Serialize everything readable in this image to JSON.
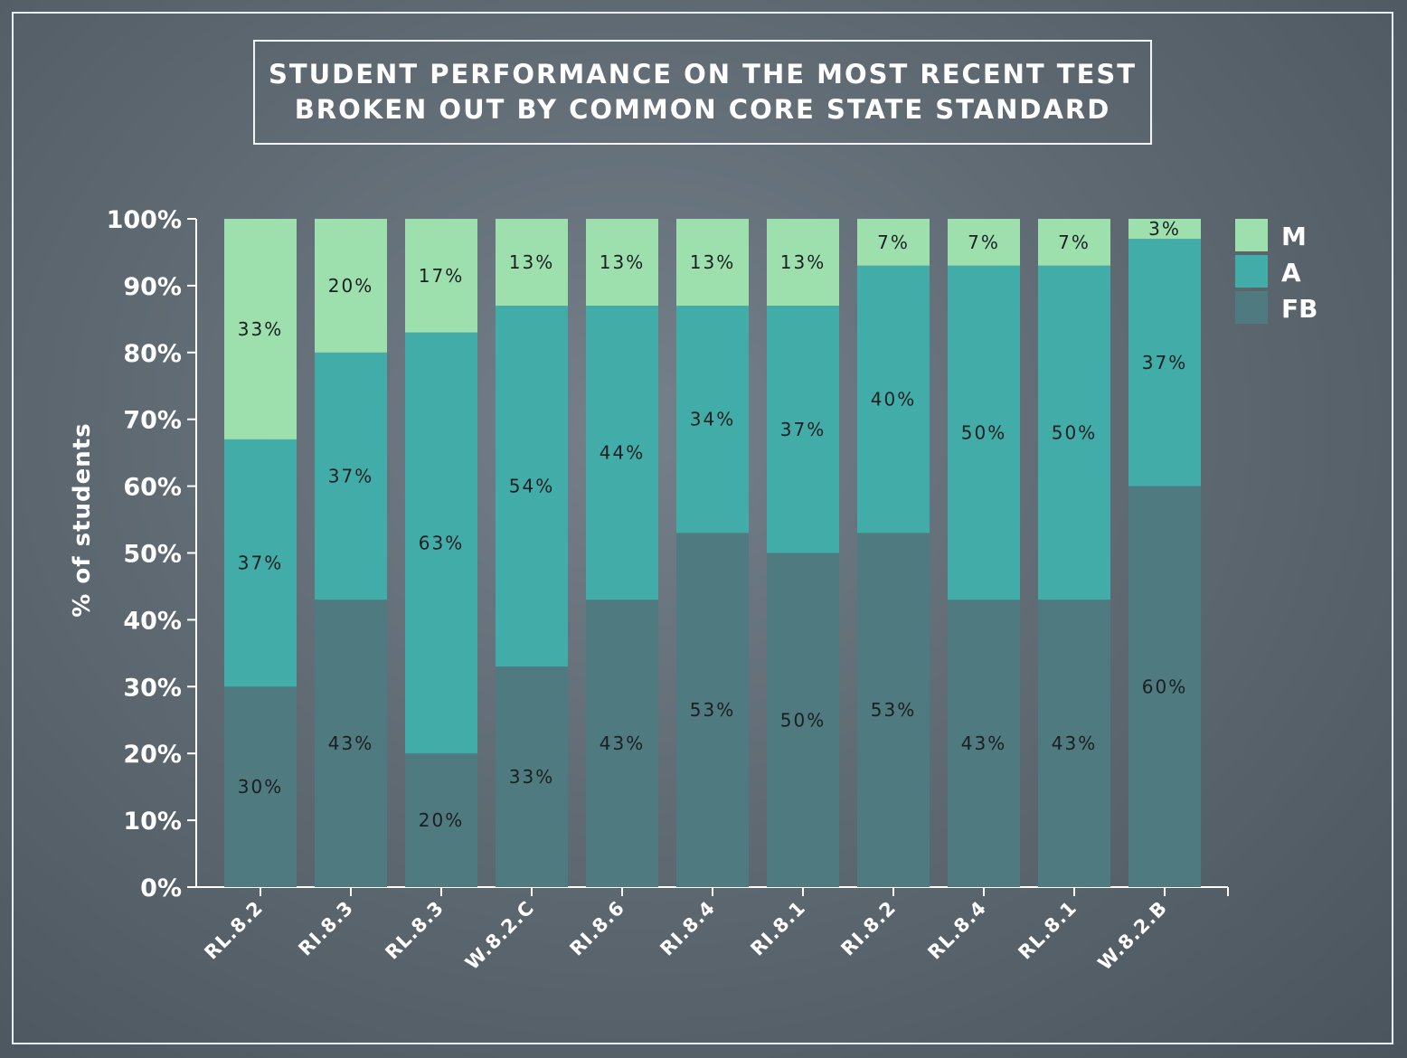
{
  "chart_data": {
    "type": "bar",
    "stacked": true,
    "title_lines": [
      "STUDENT PERFORMANCE ON THE MOST RECENT TEST",
      "BROKEN OUT BY COMMON CORE STATE STANDARD"
    ],
    "ylabel": "% of students",
    "ylim": [
      0,
      100
    ],
    "yticks": [
      "0%",
      "10%",
      "20%",
      "30%",
      "40%",
      "50%",
      "60%",
      "70%",
      "80%",
      "90%",
      "100%"
    ],
    "categories": [
      "RL.8.2",
      "RI.8.3",
      "RL.8.3",
      "W.8.2.C",
      "RI.8.6",
      "RI.8.4",
      "RI.8.1",
      "RI.8.2",
      "RL.8.4",
      "RL.8.1",
      "W.8.2.B"
    ],
    "series": [
      {
        "name": "FB",
        "color": "#4f7a80",
        "values": [
          30,
          43,
          20,
          33,
          43,
          53,
          50,
          53,
          43,
          43,
          60
        ],
        "labels": [
          "30%",
          "43%",
          "20%",
          "33%",
          "43%",
          "53%",
          "50%",
          "53%",
          "43%",
          "43%",
          "60%"
        ]
      },
      {
        "name": "A",
        "color": "#42aca8",
        "values": [
          37,
          37,
          63,
          54,
          44,
          34,
          37,
          40,
          50,
          50,
          37
        ],
        "labels": [
          "37%",
          "37%",
          "63%",
          "54%",
          "44%",
          "34%",
          "37%",
          "40%",
          "50%",
          "50%",
          "37%"
        ]
      },
      {
        "name": "M",
        "color": "#9de0ae",
        "values": [
          33,
          20,
          17,
          13,
          13,
          13,
          13,
          7,
          7,
          7,
          3
        ],
        "labels": [
          "33%",
          "20%",
          "17%",
          "13%",
          "13%",
          "13%",
          "13%",
          "7%",
          "7%",
          "7%",
          "3%"
        ]
      }
    ],
    "legend": {
      "position": "top-right",
      "order": [
        "M",
        "A",
        "FB"
      ]
    },
    "axis_color": "#ffffff",
    "grid": false
  }
}
